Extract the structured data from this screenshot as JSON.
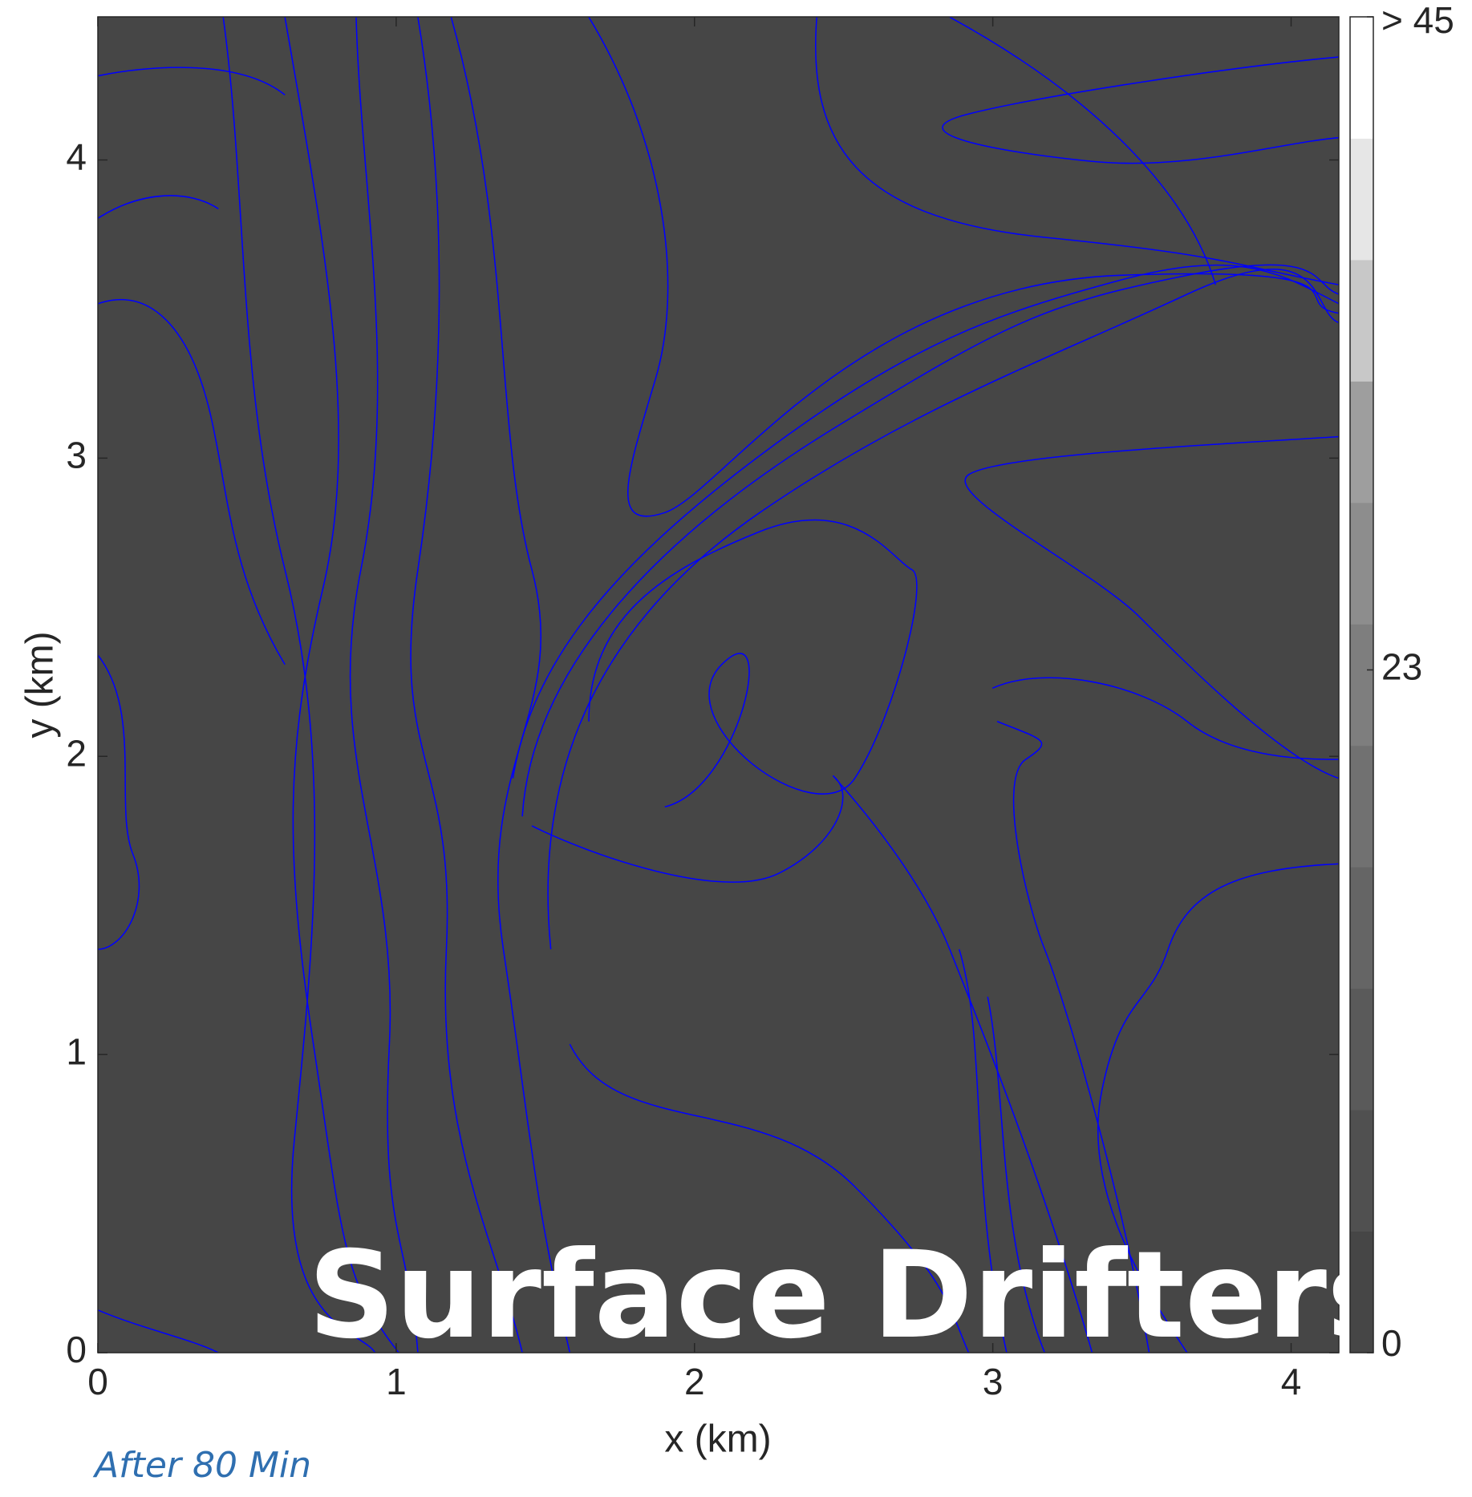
{
  "chart_data": {
    "type": "heatmap",
    "xlabel": "x (km)",
    "ylabel": "y (km)",
    "xlim": [
      0,
      4.16
    ],
    "ylim": [
      0,
      4.48
    ],
    "xticks": [
      0,
      1,
      2,
      3,
      4
    ],
    "yticks": [
      0,
      1,
      2,
      3,
      4
    ],
    "background": "#464646",
    "contour_color": "#0000ff",
    "colorbar": {
      "clim": [
        0,
        45
      ],
      "ticks": [
        0,
        23,
        {
          "value": 45,
          "label": "> 45"
        }
      ],
      "colors": [
        "#464646",
        "#505050",
        "#5a5a5a",
        "#656565",
        "#717171",
        "#7e7e7e",
        "#8d8d8d",
        "#9e9e9e",
        "#c8c8c8",
        "#e6e6e6",
        "#ffffff"
      ]
    },
    "annotations": [
      "Surface Drifters",
      "After 80 Min"
    ]
  }
}
